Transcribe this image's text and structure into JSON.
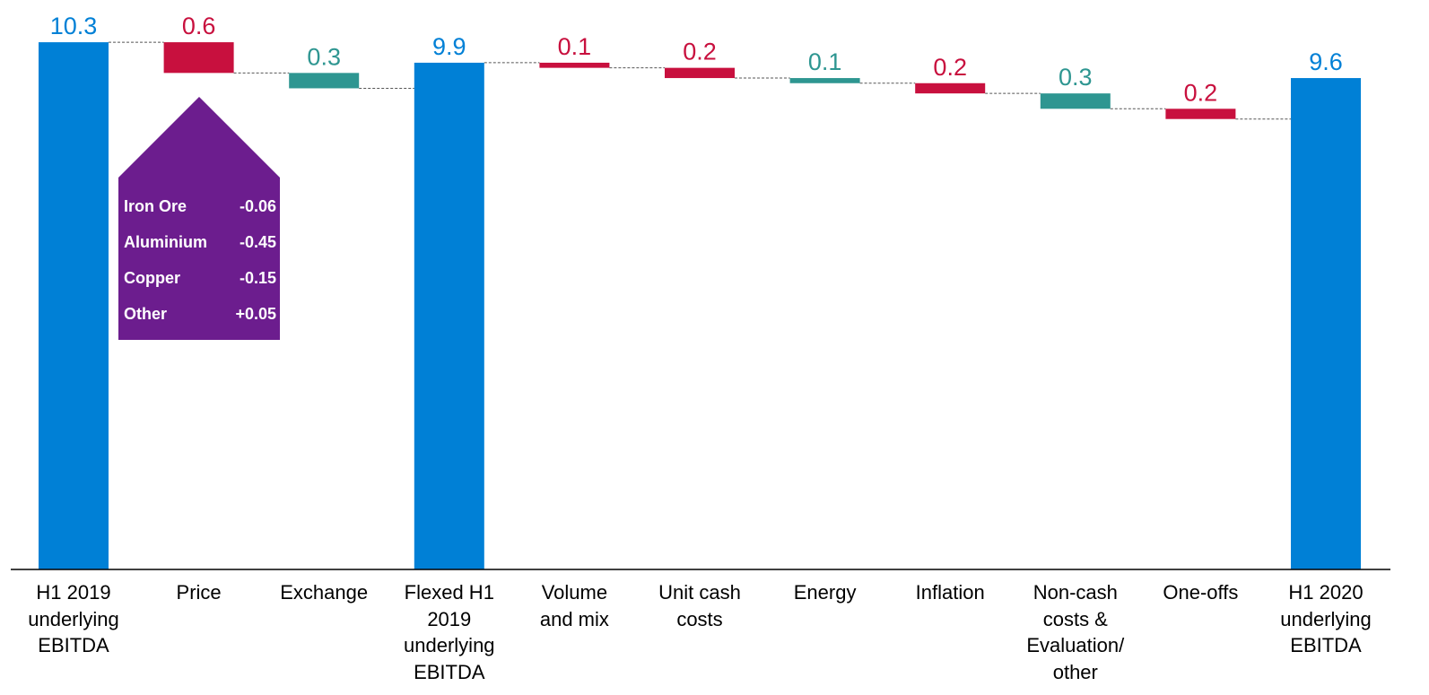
{
  "chart_data": {
    "type": "waterfall",
    "categories": [
      "H1 2019\nunderlying\nEBITDA",
      "Price",
      "Exchange",
      "Flexed H1\n2019\nunderlying\nEBITDA",
      "Volume\nand mix",
      "Unit cash\ncosts",
      "Energy",
      "Inflation",
      "Non-cash\ncosts &\nEvaluation/\nother",
      "One-offs",
      "H1 2020\nunderlying\nEBITDA"
    ],
    "value_labels": [
      "10.3",
      "0.6",
      "0.3",
      "9.9",
      "0.1",
      "0.2",
      "0.1",
      "0.2",
      "0.3",
      "0.2",
      "9.6"
    ],
    "values": [
      10.3,
      -0.6,
      0.3,
      9.9,
      -0.1,
      -0.2,
      0.1,
      -0.2,
      0.3,
      -0.2,
      9.6
    ],
    "kinds": [
      "total",
      "negative",
      "positive",
      "total",
      "negative",
      "negative",
      "positive",
      "negative",
      "positive",
      "negative",
      "total"
    ],
    "ylim": [
      0,
      10.95
    ],
    "colors": {
      "total": "#0080D6",
      "negative": "#C8103E",
      "positive": "#2E9691",
      "connector": "#555555",
      "callout": "#6C1D8E"
    },
    "price_breakdown": [
      {
        "name": "Iron Ore",
        "value": "-0.06"
      },
      {
        "name": "Aluminium",
        "value": "-0.45"
      },
      {
        "name": "Copper",
        "value": "-0.15"
      },
      {
        "name": "Other",
        "value": "+0.05"
      }
    ]
  }
}
